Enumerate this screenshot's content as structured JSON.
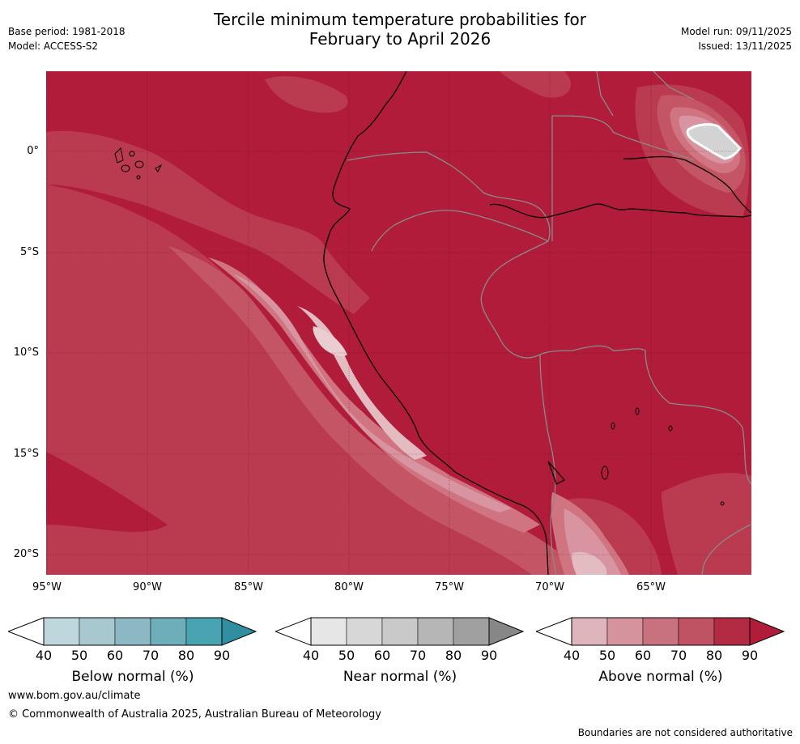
{
  "header": {
    "title_line1": "Tercile minimum temperature probabilities for",
    "title_line2": "February to April 2026",
    "base_period": "Base period: 1981-2018",
    "model": "Model: ACCESS-S2",
    "model_run": "Model run: 09/11/2025",
    "issued": "Issued: 13/11/2025"
  },
  "axes": {
    "latitudes": [
      "0°",
      "5°S",
      "10°S",
      "15°S",
      "20°S"
    ],
    "longitudes": [
      "95°W",
      "90°W",
      "85°W",
      "80°W",
      "75°W",
      "70°W",
      "65°W"
    ]
  },
  "legend": {
    "ticks": [
      "40",
      "50",
      "60",
      "70",
      "80",
      "90"
    ],
    "below": {
      "label": "Below normal (%)",
      "colors": [
        "#bdd7dc",
        "#a6c8ce",
        "#8bb8c3",
        "#6daeba",
        "#4aa3b1",
        "#2f8fa0"
      ]
    },
    "near": {
      "label": "Near normal (%)",
      "colors": [
        "#e6e6e6",
        "#d7d7d7",
        "#c9c9c9",
        "#b6b6b6",
        "#a0a0a0",
        "#878787"
      ]
    },
    "above": {
      "label": "Above normal (%)",
      "colors": [
        "#dfb5bd",
        "#d4939d",
        "#c9727f",
        "#c05363",
        "#b32b42",
        "#b01c3a"
      ]
    }
  },
  "colors": {
    "above90": "#b01c3a",
    "above80": "#ba3a50",
    "above70": "#c45564",
    "above60": "#cf7480",
    "above50": "#d894a0",
    "above40": "#e3bcc2",
    "near": "#d3d3d3"
  },
  "footer": {
    "website": "www.bom.gov.au/climate",
    "copyright": "© Commonwealth of Australia 2025, Australian Bureau of Meteorology",
    "disclaimer": "Boundaries are not considered authoritative"
  }
}
